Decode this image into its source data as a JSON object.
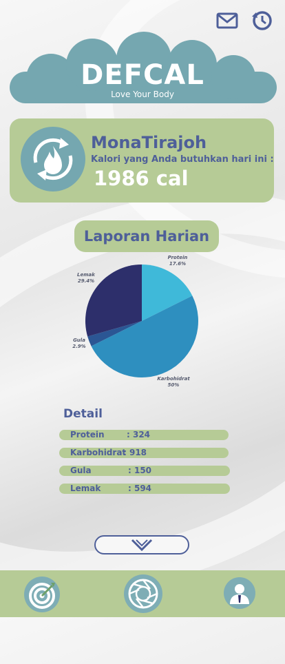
{
  "header": {
    "brand_title": "DEFCAL",
    "brand_subtitle": "Love Your Body",
    "icons": [
      "mail-icon",
      "history-icon"
    ]
  },
  "profile": {
    "name": "MonaTirajoh",
    "calorie_label": "Kalori yang Anda butuhkan hari ini :",
    "calorie_value": "1986 cal",
    "icon": "flame-cycle-icon"
  },
  "report": {
    "title": "Laporan Harian"
  },
  "chart_data": {
    "type": "pie",
    "slices": [
      {
        "label": "Protein",
        "pct_label": "17.6%",
        "value": 17.6,
        "color": "#3fb9d9"
      },
      {
        "label": "Karbohidrat",
        "pct_label": "50%",
        "value": 50,
        "color": "#2e8fbf"
      },
      {
        "label": "Gula",
        "pct_label": "2.9%",
        "value": 2.9,
        "color": "#2b5694"
      },
      {
        "label": "Lemak",
        "pct_label": "29.4%",
        "value": 29.4,
        "color": "#2d2f6b"
      }
    ]
  },
  "detail": {
    "title": "Detail",
    "rows": [
      {
        "label": "Protein",
        "value": ": 324"
      },
      {
        "label": "Karbohidrat",
        "value": ": 918"
      },
      {
        "label": "Gula",
        "value": ": 150"
      },
      {
        "label": "Lemak",
        "value": ": 594"
      }
    ]
  },
  "bottom_nav": {
    "items": [
      "target-icon",
      "camera-shutter-icon",
      "profile-icon"
    ]
  },
  "colors": {
    "accent_green": "#b6cb96",
    "teal": "#75a7b0",
    "text_blue": "#4e5f99"
  }
}
